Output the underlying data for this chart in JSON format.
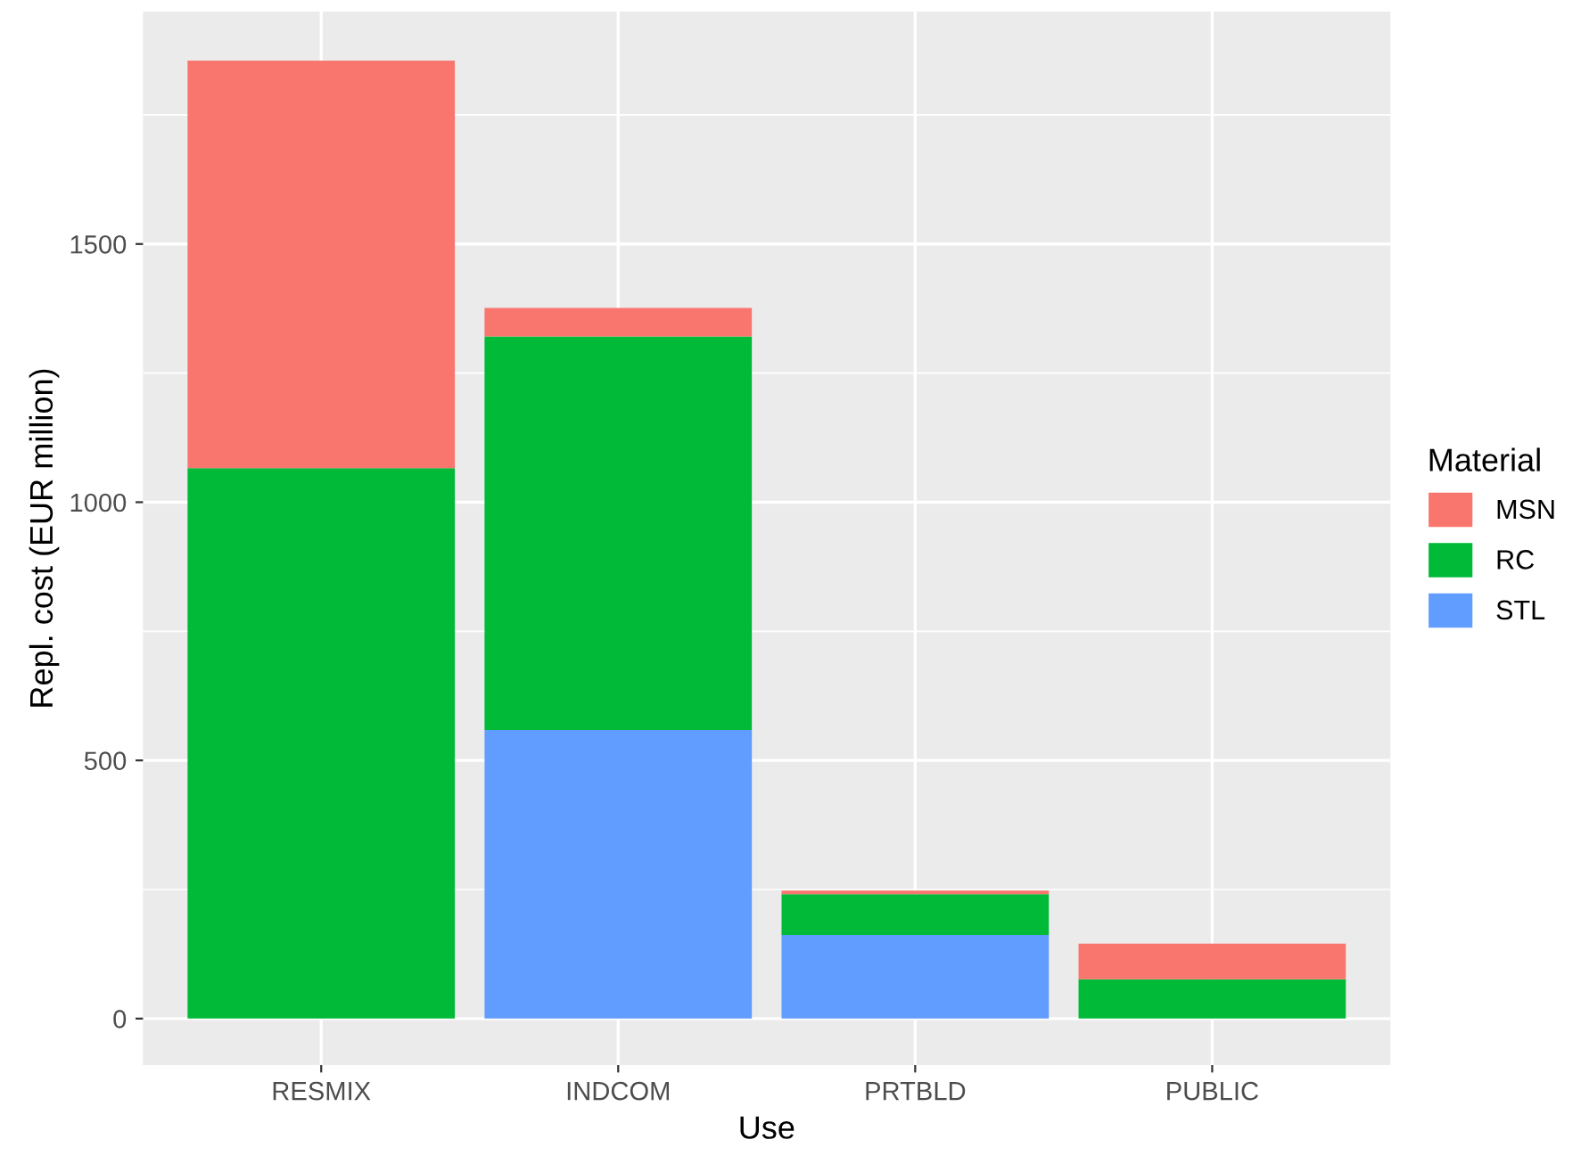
{
  "chart_data": {
    "type": "bar",
    "stacked": true,
    "xlabel": "Use",
    "ylabel": "Repl. cost (EUR million)",
    "legend_title": "Material",
    "legend": "right",
    "grid": true,
    "categories": [
      "RESMIX",
      "INDCOM",
      "PRTBLD",
      "PUBLIC"
    ],
    "series": [
      {
        "name": "STL",
        "color": "#619cff",
        "values": [
          0,
          559,
          162,
          0
        ]
      },
      {
        "name": "RC",
        "color": "#00ba38",
        "values": [
          1066,
          762,
          79,
          76
        ]
      },
      {
        "name": "MSN",
        "color": "#f8766d",
        "values": [
          789,
          55,
          7,
          69
        ]
      }
    ],
    "ylim": [
      -90,
      1950
    ],
    "yticks": [
      0,
      500,
      1000,
      1500
    ]
  }
}
